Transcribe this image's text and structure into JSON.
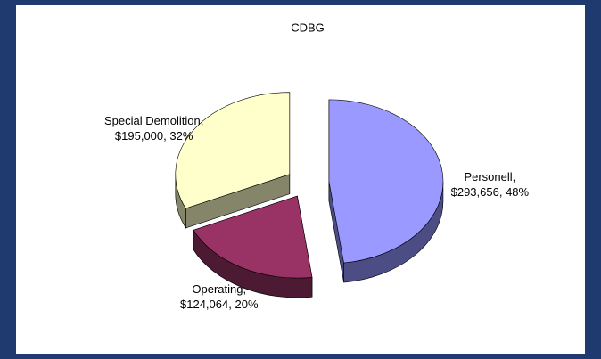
{
  "chart_data": {
    "type": "pie",
    "title": "CDBG",
    "categories": [
      "Personell",
      "Operating",
      "Special Demolition"
    ],
    "values": [
      293656,
      124064,
      195000
    ],
    "value_labels": [
      "$293,656",
      "$124,064",
      "$195,000"
    ],
    "percent_labels": [
      "48%",
      "20%",
      "32%"
    ],
    "separator": ", ",
    "colors": [
      "#9999ff",
      "#993366",
      "#ffffcc"
    ],
    "side_colors": [
      "#4d4d85",
      "#4d1a33",
      "#85856a"
    ],
    "exploded": true
  }
}
